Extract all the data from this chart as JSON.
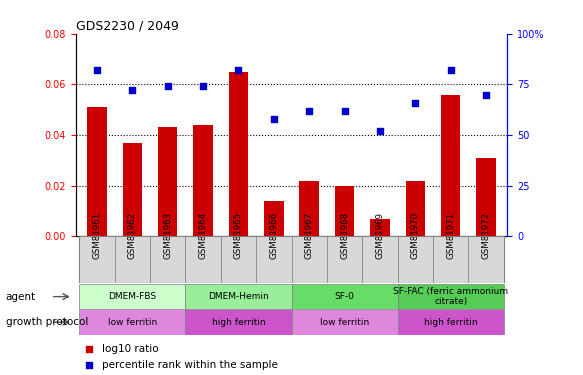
{
  "title": "GDS2230 / 2049",
  "samples": [
    "GSM81961",
    "GSM81962",
    "GSM81963",
    "GSM81964",
    "GSM81965",
    "GSM81966",
    "GSM81967",
    "GSM81968",
    "GSM81969",
    "GSM81970",
    "GSM81971",
    "GSM81972"
  ],
  "log10_ratio": [
    0.051,
    0.037,
    0.043,
    0.044,
    0.065,
    0.014,
    0.022,
    0.02,
    0.007,
    0.022,
    0.056,
    0.031
  ],
  "percentile_rank": [
    82,
    72,
    74,
    74,
    82,
    58,
    62,
    62,
    52,
    66,
    82,
    70
  ],
  "ylim_left": [
    0,
    0.08
  ],
  "ylim_right": [
    0,
    100
  ],
  "yticks_left": [
    0,
    0.02,
    0.04,
    0.06,
    0.08
  ],
  "yticks_right": [
    0,
    25,
    50,
    75,
    100
  ],
  "bar_color": "#cc0000",
  "dot_color": "#0000cc",
  "agent_groups": [
    {
      "label": "DMEM-FBS",
      "start": 0,
      "end": 3,
      "color": "#ccffcc"
    },
    {
      "label": "DMEM-Hemin",
      "start": 3,
      "end": 6,
      "color": "#99ee99"
    },
    {
      "label": "SF-0",
      "start": 6,
      "end": 9,
      "color": "#66dd66"
    },
    {
      "label": "SF-FAC (ferric ammonium\ncitrate)",
      "start": 9,
      "end": 12,
      "color": "#55cc55"
    }
  ],
  "growth_groups": [
    {
      "label": "low ferritin",
      "start": 0,
      "end": 3,
      "color": "#dd88dd"
    },
    {
      "label": "high ferritin",
      "start": 3,
      "end": 6,
      "color": "#cc55cc"
    },
    {
      "label": "low ferritin",
      "start": 6,
      "end": 9,
      "color": "#dd88dd"
    },
    {
      "label": "high ferritin",
      "start": 9,
      "end": 12,
      "color": "#cc55cc"
    }
  ],
  "legend_bar_label": "log10 ratio",
  "legend_dot_label": "percentile rank within the sample"
}
